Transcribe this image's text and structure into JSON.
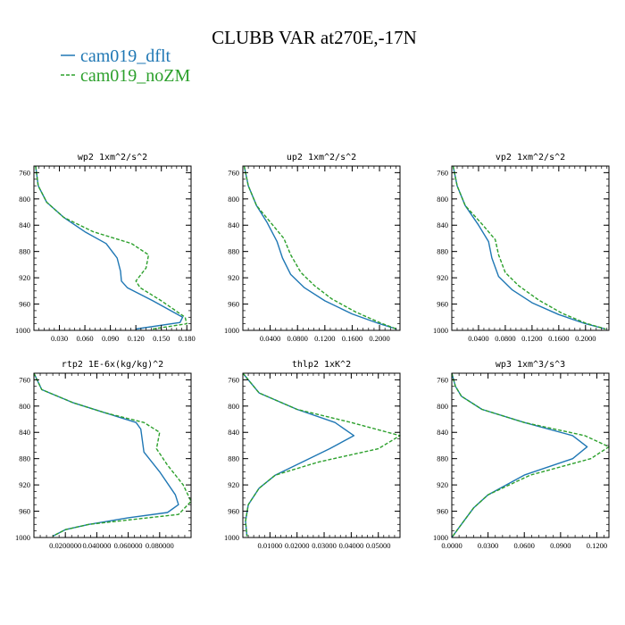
{
  "figure": {
    "title": "CLUBB VAR at270E,-17N",
    "legend": [
      {
        "label": "cam019_dflt",
        "color": "#1f77b4",
        "dash": false
      },
      {
        "label": "cam019_noZM",
        "color": "#2ca02c",
        "dash": true
      }
    ]
  },
  "chart_data": [
    {
      "type": "line",
      "title": "wp2   1xm^2/s^2",
      "xlim": [
        0.0,
        0.185
      ],
      "ylim": [
        1000,
        750
      ],
      "xticks": [
        0.03,
        0.06,
        0.09,
        0.12,
        0.15,
        0.18
      ],
      "xticklabels": [
        "0.030",
        "0.060",
        "0.090",
        "0.120",
        "0.150",
        "0.180"
      ],
      "yticks": [
        760,
        800,
        840,
        880,
        920,
        960,
        1000
      ],
      "series": [
        {
          "name": "cam019_dflt",
          "x": [
            0.002,
            0.005,
            0.015,
            0.035,
            0.06,
            0.085,
            0.098,
            0.102,
            0.103,
            0.11,
            0.14,
            0.175,
            0.172,
            0.12
          ],
          "y": [
            750,
            780,
            805,
            828,
            850,
            868,
            890,
            910,
            925,
            935,
            955,
            980,
            988,
            998
          ]
        },
        {
          "name": "cam019_noZM",
          "x": [
            0.002,
            0.005,
            0.015,
            0.035,
            0.07,
            0.115,
            0.135,
            0.132,
            0.12,
            0.125,
            0.15,
            0.178,
            0.18,
            0.14
          ],
          "y": [
            750,
            780,
            805,
            828,
            850,
            868,
            885,
            905,
            925,
            935,
            955,
            980,
            990,
            998
          ]
        }
      ]
    },
    {
      "type": "line",
      "title": "up2   1xm^2/s^2",
      "xlim": [
        0.0,
        0.23
      ],
      "ylim": [
        1000,
        750
      ],
      "xticks": [
        0.04,
        0.08,
        0.12,
        0.16,
        0.2
      ],
      "xticklabels": [
        "0.0400",
        "0.0800",
        "0.1200",
        "0.1600",
        "0.2000"
      ],
      "yticks": [
        760,
        800,
        840,
        880,
        920,
        960,
        1000
      ],
      "series": [
        {
          "name": "cam019_dflt",
          "x": [
            0.002,
            0.008,
            0.02,
            0.035,
            0.05,
            0.058,
            0.07,
            0.09,
            0.12,
            0.16,
            0.2,
            0.225
          ],
          "y": [
            750,
            780,
            810,
            835,
            865,
            890,
            915,
            935,
            955,
            975,
            990,
            998
          ]
        },
        {
          "name": "cam019_noZM",
          "x": [
            0.002,
            0.008,
            0.02,
            0.04,
            0.06,
            0.07,
            0.085,
            0.105,
            0.13,
            0.165,
            0.2,
            0.225
          ],
          "y": [
            750,
            780,
            810,
            835,
            860,
            885,
            912,
            932,
            952,
            972,
            988,
            998
          ]
        }
      ]
    },
    {
      "type": "line",
      "title": "vp2   1xm^2/s^2",
      "xlim": [
        0.0,
        0.235
      ],
      "ylim": [
        1000,
        750
      ],
      "xticks": [
        0.04,
        0.08,
        0.12,
        0.16,
        0.2
      ],
      "xticklabels": [
        "0.0400",
        "0.0800",
        "0.1200",
        "0.1600",
        "0.2000"
      ],
      "yticks": [
        760,
        800,
        840,
        880,
        920,
        960,
        1000
      ],
      "series": [
        {
          "name": "cam019_dflt",
          "x": [
            0.002,
            0.008,
            0.02,
            0.04,
            0.055,
            0.06,
            0.07,
            0.09,
            0.12,
            0.16,
            0.2,
            0.23
          ],
          "y": [
            750,
            780,
            810,
            840,
            865,
            890,
            918,
            938,
            958,
            976,
            990,
            998
          ]
        },
        {
          "name": "cam019_noZM",
          "x": [
            0.002,
            0.008,
            0.02,
            0.045,
            0.065,
            0.07,
            0.08,
            0.1,
            0.13,
            0.165,
            0.2,
            0.23
          ],
          "y": [
            750,
            780,
            810,
            838,
            862,
            885,
            912,
            932,
            954,
            974,
            989,
            998
          ]
        }
      ]
    },
    {
      "type": "line",
      "title": "rtp2   1E-6x(kg/kg)^2",
      "xlim": [
        0.0,
        0.1
      ],
      "ylim": [
        1000,
        750
      ],
      "xticks": [
        0.02,
        0.04,
        0.06,
        0.08
      ],
      "xticklabels": [
        "0.0200000",
        "0.040000",
        "0.060000",
        "0.080000"
      ],
      "yticks": [
        760,
        800,
        840,
        880,
        920,
        960,
        1000
      ],
      "series": [
        {
          "name": "cam019_dflt",
          "x": [
            0.0,
            0.005,
            0.025,
            0.045,
            0.065,
            0.068,
            0.07,
            0.08,
            0.09,
            0.092,
            0.085,
            0.06,
            0.035,
            0.02,
            0.012
          ],
          "y": [
            750,
            775,
            795,
            810,
            825,
            835,
            870,
            900,
            935,
            950,
            962,
            970,
            980,
            988,
            998
          ]
        },
        {
          "name": "cam019_noZM",
          "x": [
            0.0,
            0.005,
            0.025,
            0.045,
            0.07,
            0.08,
            0.078,
            0.085,
            0.095,
            0.1,
            0.092,
            0.065,
            0.035,
            0.02,
            0.012
          ],
          "y": [
            750,
            775,
            795,
            810,
            825,
            840,
            865,
            890,
            920,
            945,
            965,
            972,
            980,
            988,
            998
          ]
        }
      ]
    },
    {
      "type": "line",
      "title": "thlp2   1xK^2",
      "xlim": [
        0.0,
        0.058
      ],
      "ylim": [
        1000,
        750
      ],
      "xticks": [
        0.01,
        0.02,
        0.03,
        0.04,
        0.05
      ],
      "xticklabels": [
        "0.01000",
        "0.02000",
        "0.03000",
        "0.04000",
        "0.05000"
      ],
      "yticks": [
        760,
        800,
        840,
        880,
        920,
        960,
        1000
      ],
      "series": [
        {
          "name": "cam019_dflt",
          "x": [
            0.0,
            0.006,
            0.02,
            0.034,
            0.041,
            0.032,
            0.022,
            0.012,
            0.006,
            0.002,
            0.001,
            0.0015
          ],
          "y": [
            750,
            780,
            805,
            825,
            845,
            865,
            885,
            905,
            925,
            950,
            975,
            998
          ]
        },
        {
          "name": "cam019_noZM",
          "x": [
            0.0,
            0.006,
            0.02,
            0.04,
            0.058,
            0.05,
            0.028,
            0.012,
            0.006,
            0.002,
            0.001,
            0.0015
          ],
          "y": [
            750,
            780,
            805,
            825,
            845,
            865,
            885,
            905,
            925,
            950,
            975,
            998
          ]
        }
      ]
    },
    {
      "type": "line",
      "title": "wp3   1xm^3/s^3",
      "xlim": [
        0.0,
        0.13
      ],
      "ylim": [
        1000,
        750
      ],
      "xticks": [
        0.0,
        0.03,
        0.06,
        0.09,
        0.12
      ],
      "xticklabels": [
        "0.0000",
        "0.0300",
        "0.0600",
        "0.0900",
        "0.1200"
      ],
      "yticks": [
        760,
        800,
        840,
        880,
        920,
        960,
        1000
      ],
      "series": [
        {
          "name": "cam019_dflt",
          "x": [
            0.0,
            0.003,
            0.008,
            0.025,
            0.06,
            0.1,
            0.112,
            0.1,
            0.06,
            0.03,
            0.018,
            0.01,
            0.004,
            0.0
          ],
          "y": [
            750,
            770,
            785,
            805,
            825,
            845,
            862,
            880,
            905,
            935,
            955,
            975,
            990,
            1000
          ]
        },
        {
          "name": "cam019_noZM",
          "x": [
            0.0,
            0.003,
            0.008,
            0.025,
            0.06,
            0.11,
            0.13,
            0.115,
            0.065,
            0.03,
            0.018,
            0.01,
            0.004,
            0.0
          ],
          "y": [
            750,
            770,
            785,
            805,
            825,
            845,
            862,
            880,
            905,
            935,
            955,
            975,
            990,
            1000
          ]
        }
      ]
    }
  ]
}
